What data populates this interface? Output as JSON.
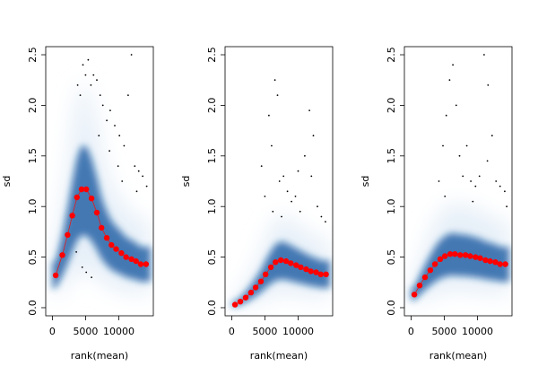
{
  "colors": {
    "density_light": "#e6eff8",
    "density_dark": "#08519c",
    "mean_points": "#ff0000",
    "outlier_dots": "#000000"
  },
  "chart_data": [
    {
      "type": "scatter",
      "title": "",
      "xlabel": "rank(mean)",
      "ylabel": "sd",
      "xlim": [
        -1000,
        15200
      ],
      "ylim": [
        -0.08,
        2.58
      ],
      "x_ticks": [
        0,
        5000,
        10000
      ],
      "x_tick_labels": [
        "0",
        "5000",
        "10000"
      ],
      "y_ticks": [
        0.0,
        0.5,
        1.0,
        1.5,
        2.0,
        2.5
      ],
      "y_tick_labels": [
        "0.0",
        "0.5",
        "1.0",
        "1.5",
        "2.0",
        "2.5"
      ],
      "series": [
        {
          "name": "running mean",
          "x": [
            500,
            1500,
            2300,
            3000,
            3700,
            4400,
            5100,
            5900,
            6700,
            7400,
            8200,
            8900,
            9600,
            10400,
            11100,
            11900,
            12600,
            13300,
            14100
          ],
          "y": [
            0.32,
            0.52,
            0.72,
            0.91,
            1.09,
            1.17,
            1.17,
            1.08,
            0.94,
            0.79,
            0.69,
            0.62,
            0.58,
            0.54,
            0.5,
            0.48,
            0.46,
            0.43,
            0.43
          ]
        }
      ],
      "outliers": [
        [
          3800,
          2.2
        ],
        [
          4200,
          2.1
        ],
        [
          4600,
          2.4
        ],
        [
          5000,
          2.3
        ],
        [
          5400,
          2.45
        ],
        [
          5800,
          2.2
        ],
        [
          6200,
          2.3
        ],
        [
          6700,
          2.25
        ],
        [
          7200,
          2.1
        ],
        [
          7600,
          2.0
        ],
        [
          8200,
          1.85
        ],
        [
          8700,
          1.95
        ],
        [
          9400,
          1.8
        ],
        [
          10100,
          1.7
        ],
        [
          10800,
          1.6
        ],
        [
          11400,
          2.1
        ],
        [
          11900,
          2.5
        ],
        [
          12400,
          1.4
        ],
        [
          13000,
          1.35
        ],
        [
          13600,
          1.3
        ],
        [
          14200,
          1.2
        ],
        [
          9900,
          1.4
        ],
        [
          12700,
          1.15
        ],
        [
          3600,
          0.55
        ],
        [
          4500,
          0.4
        ],
        [
          5100,
          0.35
        ],
        [
          5900,
          0.3
        ],
        [
          8600,
          1.55
        ],
        [
          10500,
          1.25
        ],
        [
          7000,
          1.7
        ]
      ]
    },
    {
      "type": "scatter",
      "title": "",
      "xlabel": "rank(mean)",
      "ylabel": "sd",
      "xlim": [
        -1000,
        15200
      ],
      "ylim": [
        -0.08,
        2.58
      ],
      "x_ticks": [
        0,
        5000,
        10000
      ],
      "x_tick_labels": [
        "0",
        "5000",
        "10000"
      ],
      "y_ticks": [
        0.0,
        0.5,
        1.0,
        1.5,
        2.0,
        2.5
      ],
      "y_tick_labels": [
        "0.0",
        "0.5",
        "1.0",
        "1.5",
        "2.0",
        "2.5"
      ],
      "series": [
        {
          "name": "running mean",
          "x": [
            500,
            1300,
            2100,
            2900,
            3600,
            4400,
            5100,
            5900,
            6600,
            7400,
            8200,
            8900,
            9700,
            10400,
            11200,
            11900,
            12700,
            13400,
            14200
          ],
          "y": [
            0.03,
            0.06,
            0.1,
            0.15,
            0.2,
            0.26,
            0.33,
            0.4,
            0.45,
            0.47,
            0.46,
            0.44,
            0.42,
            0.4,
            0.38,
            0.36,
            0.35,
            0.33,
            0.33
          ]
        }
      ],
      "outliers": [
        [
          4500,
          1.4
        ],
        [
          5000,
          1.1
        ],
        [
          5600,
          1.9
        ],
        [
          6000,
          1.6
        ],
        [
          6500,
          2.25
        ],
        [
          6900,
          2.1
        ],
        [
          7200,
          1.25
        ],
        [
          7800,
          1.3
        ],
        [
          8400,
          1.15
        ],
        [
          9000,
          1.05
        ],
        [
          9600,
          1.1
        ],
        [
          10300,
          0.95
        ],
        [
          11000,
          1.5
        ],
        [
          11700,
          1.95
        ],
        [
          12300,
          1.7
        ],
        [
          12900,
          1.0
        ],
        [
          13500,
          0.9
        ],
        [
          14100,
          0.85
        ],
        [
          6200,
          0.95
        ],
        [
          7500,
          0.9
        ],
        [
          10000,
          1.35
        ],
        [
          12000,
          1.3
        ]
      ]
    },
    {
      "type": "scatter",
      "title": "",
      "xlabel": "rank(mean)",
      "ylabel": "sd",
      "xlim": [
        -1000,
        15200
      ],
      "ylim": [
        -0.08,
        2.58
      ],
      "x_ticks": [
        0,
        5000,
        10000
      ],
      "x_tick_labels": [
        "0",
        "5000",
        "10000"
      ],
      "y_ticks": [
        0.0,
        0.5,
        1.0,
        1.5,
        2.0,
        2.5
      ],
      "y_tick_labels": [
        "0.0",
        "0.5",
        "1.0",
        "1.5",
        "2.0",
        "2.5"
      ],
      "series": [
        {
          "name": "running mean",
          "x": [
            500,
            1300,
            2100,
            2900,
            3600,
            4400,
            5100,
            5900,
            6600,
            7400,
            8200,
            8900,
            9700,
            10400,
            11200,
            11900,
            12700,
            13400,
            14200
          ],
          "y": [
            0.13,
            0.22,
            0.3,
            0.37,
            0.43,
            0.48,
            0.51,
            0.53,
            0.53,
            0.52,
            0.52,
            0.51,
            0.5,
            0.49,
            0.47,
            0.46,
            0.45,
            0.43,
            0.43
          ]
        }
      ],
      "outliers": [
        [
          4200,
          1.25
        ],
        [
          4800,
          1.6
        ],
        [
          5300,
          1.9
        ],
        [
          5800,
          2.25
        ],
        [
          6300,
          2.4
        ],
        [
          6800,
          2.0
        ],
        [
          7300,
          1.5
        ],
        [
          7800,
          1.3
        ],
        [
          8400,
          1.6
        ],
        [
          9000,
          1.25
        ],
        [
          9700,
          1.2
        ],
        [
          10300,
          1.3
        ],
        [
          11000,
          2.5
        ],
        [
          11600,
          2.2
        ],
        [
          12200,
          1.7
        ],
        [
          12800,
          1.25
        ],
        [
          13400,
          1.2
        ],
        [
          14100,
          1.15
        ],
        [
          5100,
          1.1
        ],
        [
          9300,
          1.05
        ],
        [
          11500,
          1.45
        ],
        [
          14400,
          1.0
        ]
      ]
    }
  ]
}
